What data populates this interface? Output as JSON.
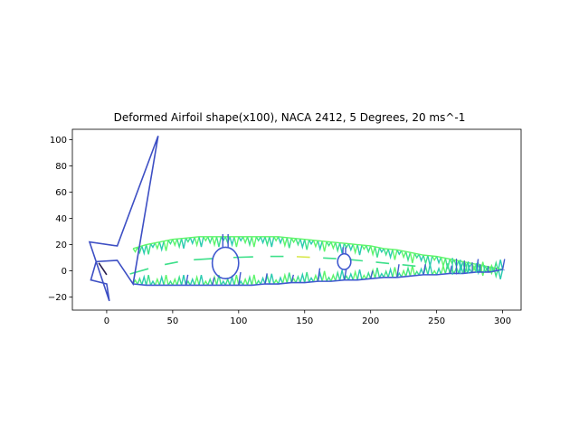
{
  "chart_data": {
    "type": "line",
    "title": "Deformed Airfoil shape(x100), NACA 2412, 5 Degrees, 20 ms^-1",
    "xlabel": "",
    "ylabel": "",
    "xlim": [
      -26,
      314
    ],
    "ylim": [
      -30,
      108
    ],
    "xticks": [
      0,
      50,
      100,
      150,
      200,
      250,
      300
    ],
    "yticks": [
      -20,
      0,
      20,
      40,
      60,
      80,
      100
    ],
    "grid": false,
    "legend": "none",
    "colors": {
      "outline": "#3d4fc4",
      "blue": "#4059cf",
      "green_light": "#5ef56a",
      "green_mid": "#3de08a",
      "teal": "#2bcbb0",
      "yellow": "#d8e84a",
      "dark": "#2a1f4f"
    },
    "upper_surface": {
      "x": [
        20,
        30,
        40,
        50,
        60,
        70,
        80,
        90,
        100,
        110,
        120,
        130,
        140,
        150,
        160,
        170,
        180,
        190,
        200,
        210,
        220,
        230,
        240,
        250,
        260,
        270,
        280,
        290,
        300
      ],
      "y": [
        17,
        20,
        22,
        24,
        25,
        26,
        26,
        26,
        26,
        26,
        26,
        26,
        25,
        24,
        23,
        22,
        21,
        20,
        19,
        17,
        16,
        14,
        12,
        11,
        9,
        7,
        5,
        3,
        1
      ]
    },
    "lower_surface": {
      "x": [
        20,
        30,
        40,
        50,
        60,
        70,
        80,
        90,
        100,
        110,
        120,
        130,
        140,
        150,
        160,
        170,
        180,
        190,
        200,
        210,
        220,
        230,
        240,
        250,
        260,
        270,
        280,
        290,
        300
      ],
      "y": [
        -10,
        -11,
        -11,
        -11,
        -11,
        -11,
        -11,
        -11,
        -11,
        -11,
        -10,
        -10,
        -9,
        -9,
        -8,
        -8,
        -7,
        -7,
        -6,
        -5,
        -5,
        -4,
        -3,
        -3,
        -2,
        -2,
        -1,
        -1,
        1
      ]
    },
    "front_wire": {
      "x": [
        39,
        20,
        8,
        -8,
        -12,
        0,
        2,
        -13,
        8,
        39
      ],
      "y": [
        103,
        -10,
        8,
        7,
        -7,
        -10,
        -23,
        22,
        19,
        103
      ]
    },
    "circles": [
      {
        "cx": 90,
        "cy": 6,
        "r": 10
      },
      {
        "cx": 180,
        "cy": 7,
        "r": 5
      }
    ],
    "camber_dashes": {
      "x": [
        12,
        40,
        60,
        90,
        120,
        140,
        160,
        180,
        200,
        220,
        240
      ],
      "y": [
        -4,
        4,
        8,
        10,
        11,
        11,
        10,
        9,
        7,
        5,
        3
      ]
    }
  }
}
